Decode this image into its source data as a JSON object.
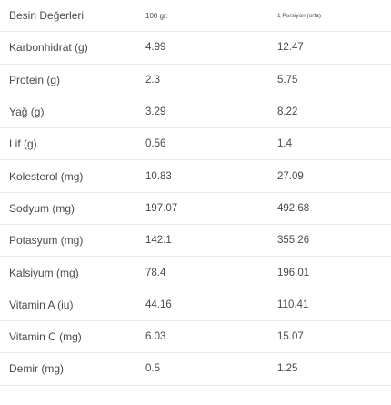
{
  "table": {
    "header": {
      "name": "Besin Değerleri",
      "per_100g": "100 gr.",
      "per_portion": "1 Porsiyon (orta)"
    },
    "rows": [
      {
        "name": "Karbonhidrat (g)",
        "per_100g": "4.99",
        "per_portion": "12.47"
      },
      {
        "name": "Protein (g)",
        "per_100g": "2.3",
        "per_portion": "5.75"
      },
      {
        "name": "Yağ (g)",
        "per_100g": "3.29",
        "per_portion": "8.22"
      },
      {
        "name": "Lif (g)",
        "per_100g": "0.56",
        "per_portion": "1.4"
      },
      {
        "name": "Kolesterol (mg)",
        "per_100g": "10.83",
        "per_portion": "27.09"
      },
      {
        "name": "Sodyum (mg)",
        "per_100g": "197.07",
        "per_portion": "492.68"
      },
      {
        "name": "Potasyum (mg)",
        "per_100g": "142.1",
        "per_portion": "355.26"
      },
      {
        "name": "Kalsiyum (mg)",
        "per_100g": "78.4",
        "per_portion": "196.01"
      },
      {
        "name": "Vitamin A (iu)",
        "per_100g": "44.16",
        "per_portion": "110.41"
      },
      {
        "name": "Vitamin C (mg)",
        "per_100g": "6.03",
        "per_portion": "15.07"
      },
      {
        "name": "Demir (mg)",
        "per_100g": "0.5",
        "per_portion": "1.25"
      }
    ]
  }
}
